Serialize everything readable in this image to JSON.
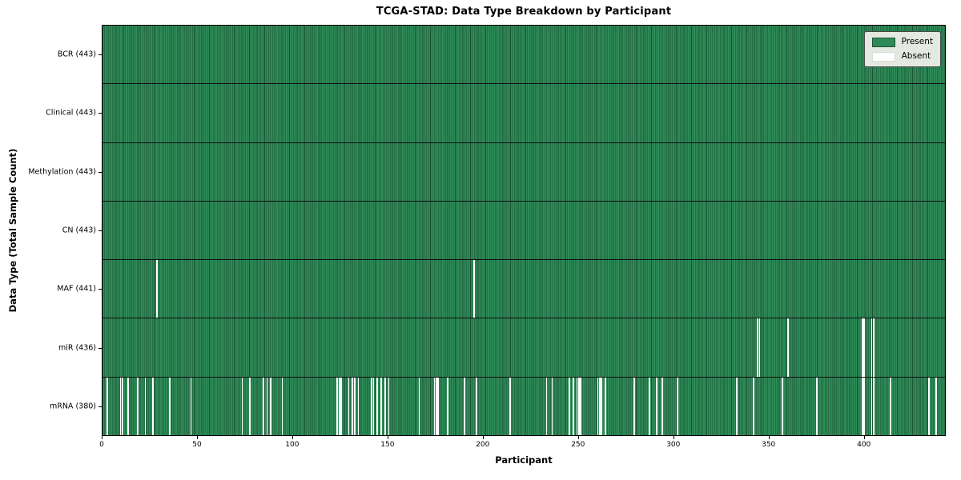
{
  "chart_data": {
    "type": "heatmap",
    "title": "TCGA-STAD: Data Type Breakdown by Participant",
    "xlabel": "Participant",
    "ylabel": "Data Type (Total Sample Count)",
    "n_participants": 443,
    "x_range": [
      0,
      443
    ],
    "x_ticks": [
      0,
      50,
      100,
      150,
      200,
      250,
      300,
      350,
      400
    ],
    "grid": false,
    "legend": {
      "position": "upper right",
      "present_label": "Present",
      "absent_label": "Absent"
    },
    "colors": {
      "present": "#2e8b57",
      "present_edge": "#1a5334",
      "absent": "#ffffff",
      "row_divider": "#0f0f0f",
      "legend_bg": "#e3e8e0"
    },
    "rows": [
      {
        "label": "BCR (443)",
        "data_type": "BCR",
        "present_count": 443,
        "absent_participants": []
      },
      {
        "label": "Clinical (443)",
        "data_type": "Clinical",
        "present_count": 443,
        "absent_participants": []
      },
      {
        "label": "Methylation (443)",
        "data_type": "Methylation",
        "present_count": 443,
        "absent_participants": []
      },
      {
        "label": "CN (443)",
        "data_type": "CN",
        "present_count": 443,
        "absent_participants": []
      },
      {
        "label": "MAF (441)",
        "data_type": "MAF",
        "present_count": 441,
        "absent_participants": [
          28,
          195
        ]
      },
      {
        "label": "miR (436)",
        "data_type": "miR",
        "present_count": 436,
        "absent_participants": [
          344,
          345,
          360,
          399,
          400,
          404,
          405
        ]
      },
      {
        "label": "mRNA (380)",
        "data_type": "mRNA",
        "present_count": 380,
        "absent_participants": [
          2,
          9,
          10,
          13,
          18,
          22,
          26,
          35,
          46,
          73,
          77,
          84,
          86,
          88,
          94,
          123,
          124,
          125,
          129,
          131,
          132,
          134,
          141,
          142,
          144,
          146,
          148,
          150,
          166,
          174,
          175,
          176,
          181,
          190,
          196,
          214,
          233,
          236,
          245,
          247,
          249,
          250,
          251,
          260,
          261,
          262,
          264,
          279,
          287,
          291,
          294,
          302,
          333,
          342,
          357,
          375,
          399,
          400,
          404,
          405,
          414,
          434,
          438
        ]
      }
    ]
  }
}
